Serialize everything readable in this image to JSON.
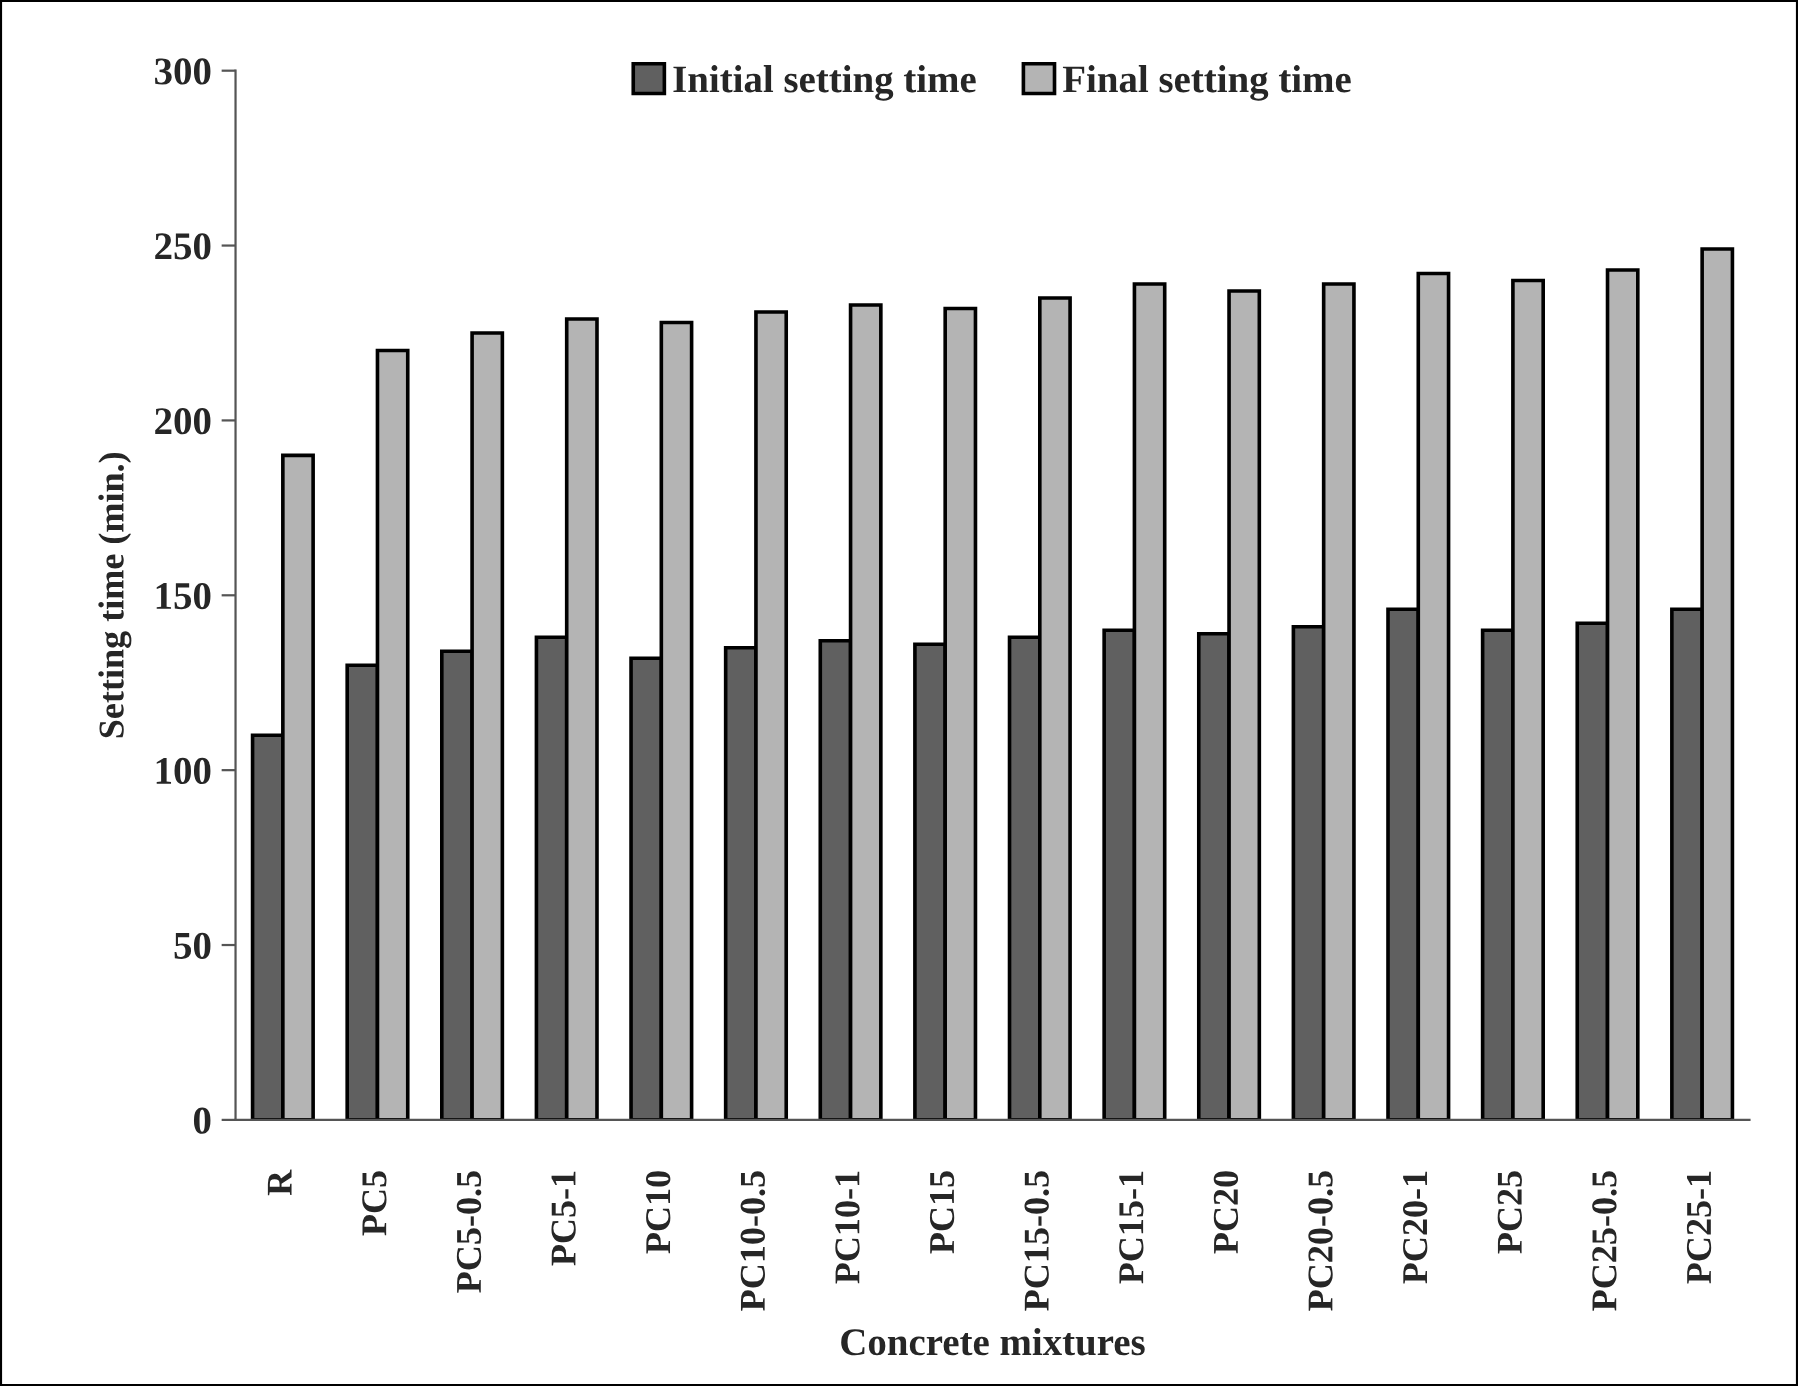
{
  "chart_data": {
    "type": "bar",
    "xlabel": "Concrete mixtures",
    "ylabel": "Setting time (min.)",
    "categories": [
      "R",
      "PC5",
      "PC5-0.5",
      "PC5-1",
      "PC10",
      "PC10-0.5",
      "PC10-1",
      "PC15",
      "PC15-0.5",
      "PC15-1",
      "PC20",
      "PC20-0.5",
      "PC20-1",
      "PC25",
      "PC25-0.5",
      "PC25-1"
    ],
    "series": [
      {
        "name": "Initial setting time",
        "color": "#606060",
        "values": [
          110,
          130,
          134,
          138,
          132,
          135,
          137,
          136,
          138,
          140,
          139,
          141,
          146,
          140,
          142,
          146
        ]
      },
      {
        "name": "Final setting time",
        "color": "#b4b4b4",
        "values": [
          190,
          220,
          225,
          229,
          228,
          231,
          233,
          232,
          235,
          239,
          237,
          239,
          242,
          240,
          243,
          249
        ]
      }
    ],
    "ylim": [
      0,
      300
    ],
    "yticks": [
      0,
      50,
      100,
      150,
      200,
      250,
      300
    ],
    "grid": false,
    "legend": "top"
  }
}
